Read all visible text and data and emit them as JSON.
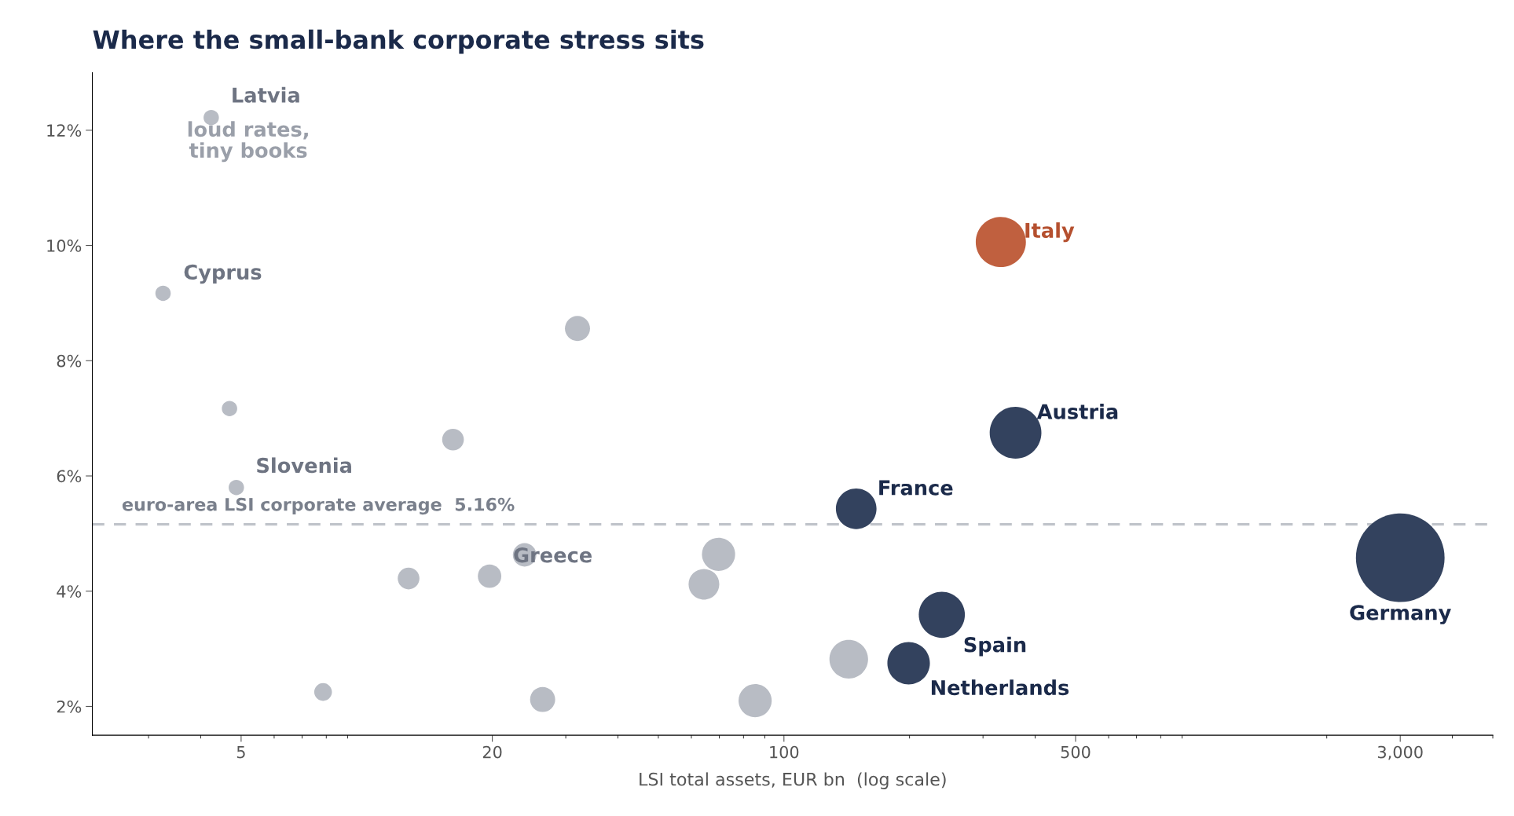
{
  "chart_data": {
    "type": "bubble",
    "title": "Where the small-bank corporate stress sits",
    "xlabel": "LSI total assets, EUR bn  (log scale)",
    "log": "x",
    "grid": false,
    "xlim": [
      2.2,
      5000
    ],
    "xticks": [
      5,
      20,
      100,
      500,
      {
        "value": 3000,
        "label": "3,000"
      }
    ],
    "ylim": [
      1.5,
      13
    ],
    "yticks": [
      {
        "value": 2,
        "label": "2%"
      },
      {
        "value": 4,
        "label": "4%"
      },
      {
        "value": 6,
        "label": "6%"
      },
      {
        "value": 8,
        "label": "8%"
      },
      {
        "value": 10,
        "label": "10%"
      },
      {
        "value": 12,
        "label": "12%"
      }
    ],
    "series": [
      {
        "color": "#b8bcc4",
        "x": [
          4.24,
          3.25,
          32,
          4.69,
          16.1,
          4.87,
          23.9,
          12.6,
          19.7,
          69.7,
          64.3,
          7.86,
          26.4,
          85.3,
          143
        ],
        "values": [
          12.22,
          9.17,
          8.56,
          7.17,
          6.63,
          5.8,
          4.63,
          4.22,
          4.26,
          4.64,
          4.12,
          2.25,
          2.12,
          2.1,
          2.82
        ],
        "sizes": [
          0.03,
          0.03,
          0.08,
          0.03,
          0.06,
          0.03,
          0.07,
          0.06,
          0.07,
          0.14,
          0.12,
          0.04,
          0.08,
          0.14,
          0.19
        ]
      },
      {
        "color": "#33425e",
        "x": [
          149,
          199,
          239,
          359,
          3000
        ],
        "values": [
          5.43,
          2.75,
          3.59,
          6.75,
          4.58
        ],
        "sizes": [
          0.21,
          0.23,
          0.27,
          0.34,
          1
        ]
      },
      {
        "color": "#c0603f",
        "x": [
          331
        ],
        "values": [
          10.06
        ],
        "sizes": [
          0.32
        ]
      }
    ],
    "ref_lines": [
      {
        "axis": "y",
        "value": 5.16,
        "label": "euro-area LSI corporate average  5.16%",
        "color": "#c0c4ca",
        "line_style": "dashed"
      }
    ],
    "annotations": [
      {
        "text": "Latvia",
        "x": 4.24,
        "y": 12.22
      },
      {
        "text": "loud rates,\ntiny books",
        "x": 4.24,
        "y": 12.22
      },
      {
        "text": "Cyprus",
        "x": 3.25,
        "y": 9.17
      },
      {
        "text": "Slovenia",
        "x": 4.87,
        "y": 5.8
      },
      {
        "text": "Greece",
        "x": 23.9,
        "y": 4.63
      },
      {
        "text": "France",
        "x": 149,
        "y": 5.43
      },
      {
        "text": "Austria",
        "x": 359,
        "y": 6.75
      },
      {
        "text": "Italy",
        "x": 331,
        "y": 10.06
      },
      {
        "text": "Spain",
        "x": 239,
        "y": 3.59
      },
      {
        "text": "Netherlands",
        "x": 199,
        "y": 2.75
      },
      {
        "text": "Germany",
        "x": 3000,
        "y": 4.58
      }
    ]
  }
}
